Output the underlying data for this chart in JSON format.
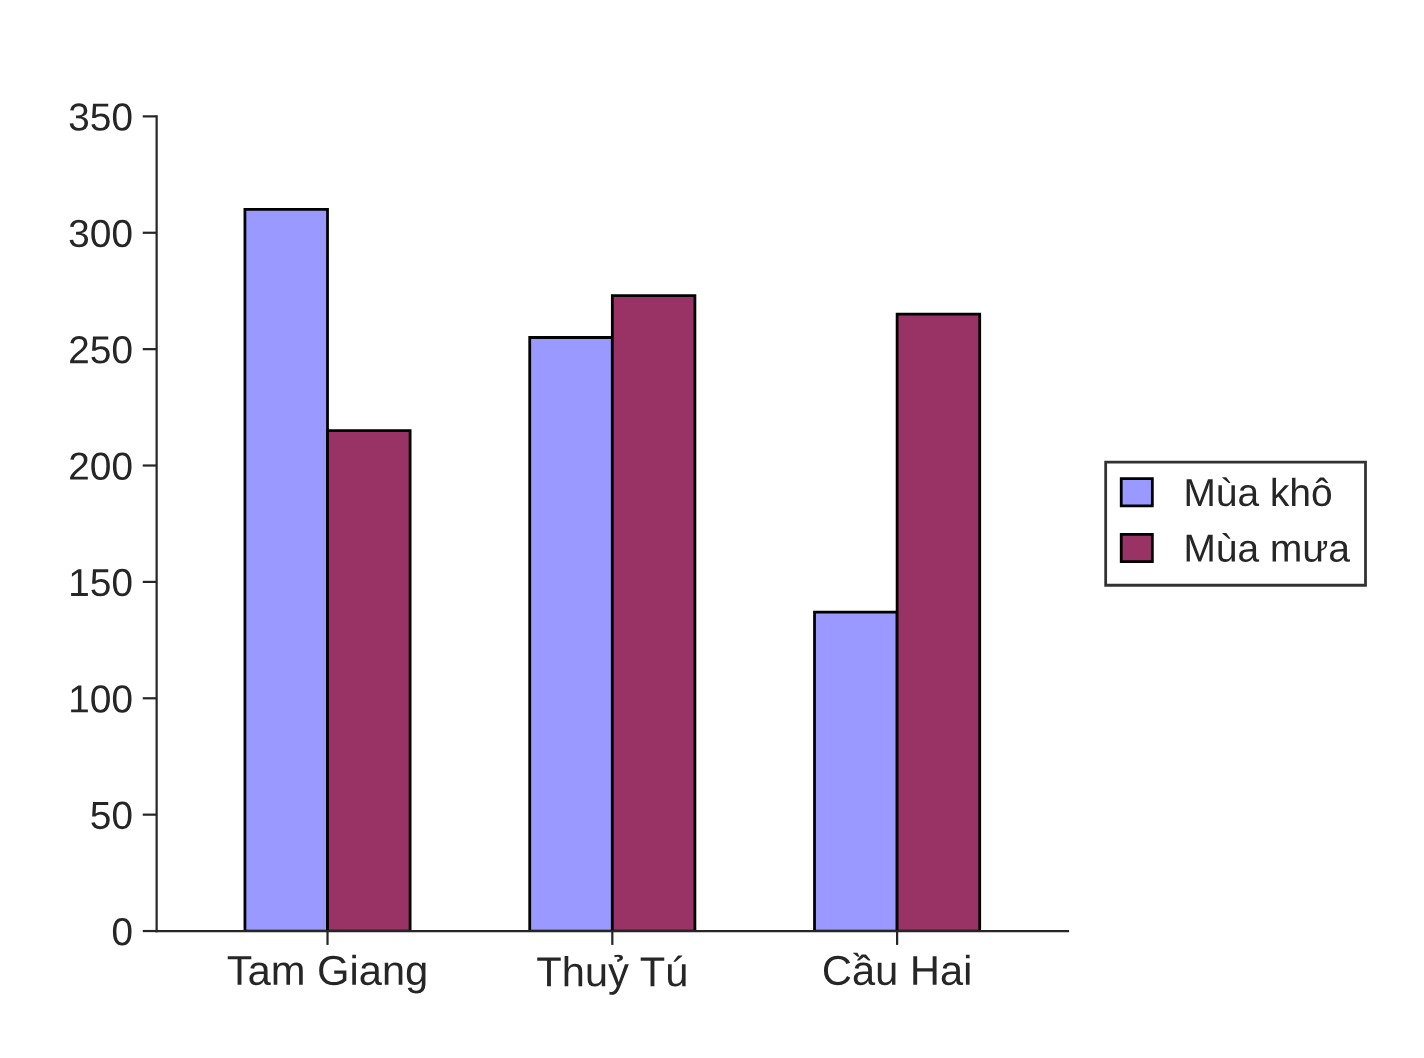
{
  "chart_data": {
    "type": "bar",
    "categories": [
      "Tam Giang",
      "Thuỷ Tú",
      "Cầu Hai"
    ],
    "series": [
      {
        "name": "Mùa khô",
        "color": "#9999ff",
        "values": [
          310,
          255,
          137
        ]
      },
      {
        "name": "Mùa mưa",
        "color": "#993366",
        "values": [
          215,
          273,
          265
        ]
      }
    ],
    "ylim": [
      0,
      350
    ],
    "yticks": [
      0,
      50,
      100,
      150,
      200,
      250,
      300,
      350
    ],
    "grid": false,
    "legend": "right"
  }
}
